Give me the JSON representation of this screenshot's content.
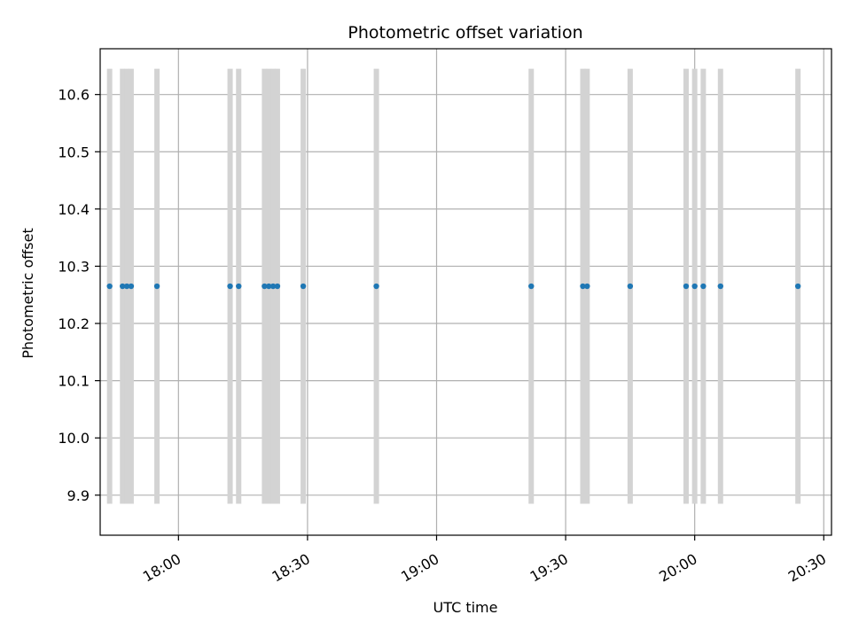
{
  "chart_data": {
    "type": "scatter",
    "title": "Photometric offset variation",
    "xlabel": "UTC time",
    "ylabel": "Photometric offset",
    "x_ticks": [
      "18:00",
      "18:30",
      "19:00",
      "19:30",
      "20:00",
      "20:30"
    ],
    "y_ticks": [
      "9.9",
      "10.0",
      "10.1",
      "10.2",
      "10.3",
      "10.4",
      "10.5",
      "10.6"
    ],
    "xlim": [
      "17:47",
      "20:30"
    ],
    "ylim": [
      9.85,
      10.68
    ],
    "grid": true,
    "series": [
      {
        "marker_color": "#1f77b4",
        "errorbar_color": "#d3d3d3",
        "points": [
          {
            "x": "17:44",
            "y": 10.265,
            "yerr": 0.38
          },
          {
            "x": "17:47",
            "y": 10.265,
            "yerr": 0.38
          },
          {
            "x": "17:48",
            "y": 10.265,
            "yerr": 0.38
          },
          {
            "x": "17:49",
            "y": 10.265,
            "yerr": 0.38
          },
          {
            "x": "17:55",
            "y": 10.265,
            "yerr": 0.38
          },
          {
            "x": "18:12",
            "y": 10.265,
            "yerr": 0.38
          },
          {
            "x": "18:14",
            "y": 10.265,
            "yerr": 0.38
          },
          {
            "x": "18:20",
            "y": 10.265,
            "yerr": 0.38
          },
          {
            "x": "18:21",
            "y": 10.265,
            "yerr": 0.38
          },
          {
            "x": "18:22",
            "y": 10.265,
            "yerr": 0.38
          },
          {
            "x": "18:23",
            "y": 10.265,
            "yerr": 0.38
          },
          {
            "x": "18:29",
            "y": 10.265,
            "yerr": 0.38
          },
          {
            "x": "18:46",
            "y": 10.265,
            "yerr": 0.38
          },
          {
            "x": "19:22",
            "y": 10.265,
            "yerr": 0.38
          },
          {
            "x": "19:34",
            "y": 10.265,
            "yerr": 0.38
          },
          {
            "x": "19:35",
            "y": 10.265,
            "yerr": 0.38
          },
          {
            "x": "19:45",
            "y": 10.265,
            "yerr": 0.38
          },
          {
            "x": "19:58",
            "y": 10.265,
            "yerr": 0.38
          },
          {
            "x": "20:00",
            "y": 10.265,
            "yerr": 0.38
          },
          {
            "x": "20:02",
            "y": 10.265,
            "yerr": 0.38
          },
          {
            "x": "20:06",
            "y": 10.265,
            "yerr": 0.38
          },
          {
            "x": "20:24",
            "y": 10.265,
            "yerr": 0.38
          }
        ]
      }
    ]
  }
}
